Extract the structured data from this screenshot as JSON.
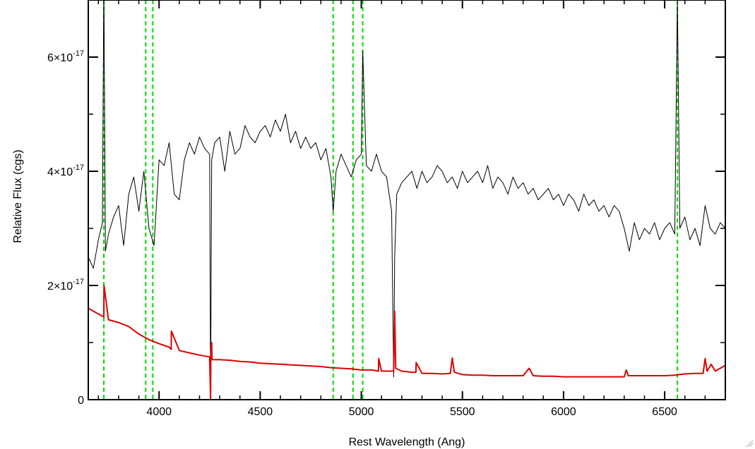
{
  "chart_data": {
    "type": "line",
    "title": "",
    "xlabel": "Rest Wavelength (Ang)",
    "ylabel": "Relative Flux (cgs)",
    "xlim": [
      3650,
      6800
    ],
    "ylim": [
      0,
      7e-17
    ],
    "grid": false,
    "legend": "none",
    "x_ticks": [
      {
        "value": 4000,
        "label": "4000"
      },
      {
        "value": 4500,
        "label": "4500"
      },
      {
        "value": 5000,
        "label": "5000"
      },
      {
        "value": 5500,
        "label": "5500"
      },
      {
        "value": 6000,
        "label": "6000"
      },
      {
        "value": 6500,
        "label": "6500"
      }
    ],
    "y_ticks": [
      {
        "value": 0,
        "mantissa": "0",
        "exp": ""
      },
      {
        "value": 2e-17,
        "mantissa": "2×10",
        "exp": "-17"
      },
      {
        "value": 4e-17,
        "mantissa": "4×10",
        "exp": "-17"
      },
      {
        "value": 6e-17,
        "mantissa": "6×10",
        "exp": "-17"
      }
    ],
    "reference_lines": {
      "color": "#00dd00",
      "style": "dashed",
      "x": [
        3727,
        3934,
        3969,
        4861,
        4959,
        5007,
        6563
      ]
    },
    "series": [
      {
        "color": "#000000",
        "x": [
          3650,
          3675,
          3700,
          3720,
          3727,
          3735,
          3750,
          3775,
          3800,
          3825,
          3850,
          3875,
          3900,
          3925,
          3950,
          3975,
          4000,
          4025,
          4050,
          4075,
          4100,
          4125,
          4150,
          4175,
          4200,
          4225,
          4250,
          4255,
          4260,
          4275,
          4300,
          4325,
          4350,
          4375,
          4400,
          4425,
          4450,
          4475,
          4500,
          4525,
          4550,
          4575,
          4600,
          4625,
          4650,
          4675,
          4700,
          4725,
          4750,
          4775,
          4800,
          4825,
          4850,
          4861,
          4875,
          4900,
          4925,
          4950,
          4975,
          5000,
          5007,
          5025,
          5050,
          5075,
          5100,
          5125,
          5150,
          5160,
          5165,
          5175,
          5200,
          5225,
          5250,
          5275,
          5300,
          5325,
          5350,
          5375,
          5400,
          5425,
          5450,
          5475,
          5500,
          5525,
          5550,
          5575,
          5600,
          5625,
          5650,
          5675,
          5700,
          5725,
          5750,
          5775,
          5800,
          5825,
          5850,
          5875,
          5900,
          5925,
          5950,
          5975,
          6000,
          6025,
          6050,
          6075,
          6100,
          6125,
          6150,
          6175,
          6200,
          6225,
          6250,
          6275,
          6300,
          6325,
          6350,
          6375,
          6400,
          6425,
          6450,
          6475,
          6500,
          6525,
          6550,
          6563,
          6575,
          6600,
          6625,
          6650,
          6675,
          6700,
          6725,
          6750,
          6775,
          6800
        ],
        "y": [
          2.5e-17,
          2.3e-17,
          2.8e-17,
          3.1e-17,
          7.3e-17,
          2.6e-17,
          2.9e-17,
          3.2e-17,
          3.4e-17,
          2.7e-17,
          3.6e-17,
          3.9e-17,
          3.3e-17,
          4e-17,
          3e-17,
          2.7e-17,
          4.2e-17,
          4.1e-17,
          4.5e-17,
          3.6e-17,
          3.5e-17,
          4.2e-17,
          4.5e-17,
          4.3e-17,
          4.6e-17,
          4.4e-17,
          4.3e-17,
          5e-19,
          4.2e-17,
          4.5e-17,
          4.6e-17,
          4e-17,
          4.7e-17,
          4.3e-17,
          4.4e-17,
          4.8e-17,
          4.6e-17,
          4.5e-17,
          4.7e-17,
          4.8e-17,
          4.6e-17,
          4.9e-17,
          4.7e-17,
          5e-17,
          4.5e-17,
          4.7e-17,
          4.4e-17,
          4.6e-17,
          4.4e-17,
          4.5e-17,
          4.2e-17,
          4.4e-17,
          3.9e-17,
          3.3e-17,
          4e-17,
          4.3e-17,
          4.1e-17,
          3.9e-17,
          4.2e-17,
          4.3e-17,
          6.1e-17,
          4.1e-17,
          4e-17,
          4.3e-17,
          4e-17,
          3.9e-17,
          3.3e-17,
          4e-18,
          2.5e-17,
          3.6e-17,
          3.8e-17,
          3.9e-17,
          4e-17,
          3.7e-17,
          4e-17,
          3.8e-17,
          3.9e-17,
          4.1e-17,
          4e-17,
          3.8e-17,
          3.9e-17,
          3.7e-17,
          4e-17,
          3.8e-17,
          3.9e-17,
          4e-17,
          3.8e-17,
          4.1e-17,
          3.7e-17,
          3.9e-17,
          3.8e-17,
          3.6e-17,
          3.9e-17,
          3.7e-17,
          3.8e-17,
          3.6e-17,
          3.7e-17,
          3.5e-17,
          3.6e-17,
          3.7e-17,
          3.5e-17,
          3.6e-17,
          3.4e-17,
          3.6e-17,
          3.5e-17,
          3.3e-17,
          3.6e-17,
          3.4e-17,
          3.5e-17,
          3.3e-17,
          3.4e-17,
          3.2e-17,
          3.4e-17,
          3.3e-17,
          3e-17,
          2.6e-17,
          3.1e-17,
          2.8e-17,
          3e-17,
          2.9e-17,
          3.1e-17,
          2.8e-17,
          3e-17,
          3.1e-17,
          2.9e-17,
          7e-17,
          3e-17,
          3.2e-17,
          2.8e-17,
          3e-17,
          2.7e-17,
          3.4e-17,
          3e-17,
          2.9e-17,
          3.1e-17,
          3e-17
        ]
      },
      {
        "color": "#dd0000",
        "x": [
          3650,
          3700,
          3727,
          3728,
          3750,
          3800,
          3850,
          3900,
          3950,
          4000,
          4050,
          4060,
          4061,
          4100,
          4150,
          4200,
          4250,
          4255,
          4256,
          4260,
          4262,
          4300,
          4350,
          4400,
          4450,
          4500,
          4550,
          4600,
          4650,
          4700,
          4750,
          4800,
          4850,
          4900,
          4950,
          5000,
          5050,
          5085,
          5086,
          5100,
          5150,
          5160,
          5165,
          5170,
          5200,
          5250,
          5270,
          5271,
          5300,
          5350,
          5400,
          5440,
          5450,
          5460,
          5500,
          5550,
          5600,
          5650,
          5700,
          5750,
          5800,
          5830,
          5850,
          5900,
          5950,
          6000,
          6050,
          6100,
          6150,
          6200,
          6250,
          6300,
          6310,
          6320,
          6350,
          6400,
          6450,
          6500,
          6550,
          6600,
          6650,
          6690,
          6700,
          6710,
          6730,
          6750,
          6775,
          6800
        ],
        "y": [
          1.6e-17,
          1.5e-17,
          1.45e-17,
          2e-17,
          1.4e-17,
          1.35e-17,
          1.28e-17,
          1.15e-17,
          1.05e-17,
          9.8e-18,
          9.2e-18,
          8.8e-18,
          1.2e-17,
          8.6e-18,
          8.2e-18,
          7.8e-18,
          7.5e-18,
          0.0,
          7.2e-18,
          1e-17,
          7e-18,
          7e-18,
          6.9e-18,
          6.7e-18,
          6.6e-18,
          6.4e-18,
          6.3e-18,
          6.2e-18,
          6.1e-18,
          6e-18,
          5.9e-18,
          5.8e-18,
          5.6e-18,
          5.5e-18,
          5.4e-18,
          5.2e-18,
          5.2e-18,
          5e-18,
          7.2e-18,
          5e-18,
          5e-18,
          5e-18,
          1.55e-17,
          5.5e-18,
          5e-18,
          4.8e-18,
          4.8e-18,
          6.5e-18,
          4.6e-18,
          4.6e-18,
          4.5e-18,
          4.6e-18,
          7.3e-18,
          4.8e-18,
          4.4e-18,
          4.3e-18,
          4.3e-18,
          4.2e-18,
          4.2e-18,
          4.2e-18,
          4.2e-18,
          5.5e-18,
          4.2e-18,
          4.1e-18,
          4.1e-18,
          4e-18,
          4e-18,
          4e-18,
          4e-18,
          4e-18,
          4e-18,
          4e-18,
          5.2e-18,
          4.2e-18,
          4.2e-18,
          4.2e-18,
          4.2e-18,
          4.2e-18,
          4.3e-18,
          4.5e-18,
          4.6e-18,
          4.6e-18,
          7.2e-18,
          5e-18,
          6.2e-18,
          5e-18,
          5.5e-18,
          6e-18
        ]
      }
    ]
  }
}
